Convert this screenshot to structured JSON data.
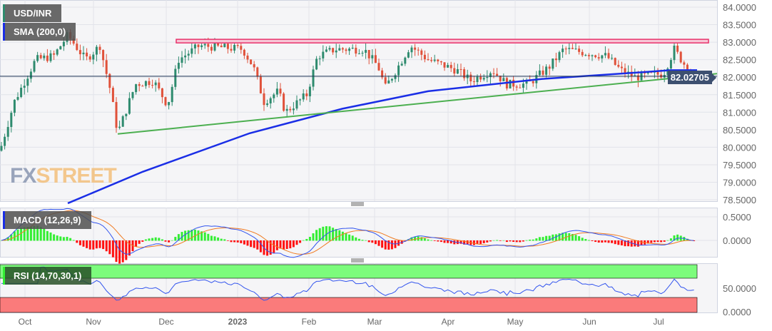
{
  "symbol_label": "USD/INR",
  "sma_label": "SMA (200,0)",
  "macd_label": "MACD (12,26,9)",
  "rsi_label": "RSI (14,70,30,1)",
  "last_price": "82.02705",
  "logo": {
    "fx": "FX",
    "street": "STREET"
  },
  "colors": {
    "up": "#2e8b6e",
    "down": "#e0513a",
    "sma": "#1a2ee6",
    "trend": "#4caf50",
    "resistance": "#e8336b",
    "macd": "#3355ee",
    "signal": "#f07a20",
    "hist_pos": "#33ee33",
    "hist_neg": "#ff1111"
  },
  "chart_data": {
    "type": "candlestick",
    "price_axis": {
      "min": 78.5,
      "max": 84.0,
      "ticks": [
        "84.0000",
        "83.5000",
        "83.0000",
        "82.5000",
        "82.0000",
        "81.5000",
        "81.0000",
        "80.5000",
        "80.0000",
        "79.5000",
        "79.0000",
        "78.5000"
      ]
    },
    "macd_axis": {
      "ticks": [
        "0.5000",
        "0.0000"
      ]
    },
    "rsi_axis": {
      "ticks": [
        "50.0000",
        "0.0000"
      ]
    },
    "x_labels": [
      "Oct",
      "Nov",
      "Dec",
      "2023",
      "Feb",
      "Mar",
      "Apr",
      "May",
      "Jun",
      "Jul"
    ],
    "close_path": [
      [
        0,
        79.9
      ],
      [
        20,
        81.3
      ],
      [
        50,
        82.5
      ],
      [
        75,
        82.6
      ],
      [
        95,
        83.2
      ],
      [
        120,
        82.5
      ],
      [
        140,
        82.9
      ],
      [
        155,
        81.6
      ],
      [
        165,
        80.4
      ],
      [
        190,
        81.8
      ],
      [
        215,
        81.9
      ],
      [
        235,
        81.2
      ],
      [
        250,
        82.5
      ],
      [
        280,
        82.9
      ],
      [
        340,
        82.8
      ],
      [
        355,
        82.3
      ],
      [
        370,
        81.3
      ],
      [
        390,
        81.6
      ],
      [
        400,
        81.0
      ],
      [
        430,
        81.5
      ],
      [
        445,
        82.6
      ],
      [
        470,
        82.8
      ],
      [
        510,
        82.8
      ],
      [
        530,
        82.3
      ],
      [
        540,
        81.7
      ],
      [
        555,
        82.2
      ],
      [
        575,
        82.9
      ],
      [
        600,
        82.5
      ],
      [
        640,
        82.2
      ],
      [
        660,
        81.9
      ],
      [
        690,
        82.2
      ],
      [
        710,
        81.8
      ],
      [
        740,
        81.8
      ],
      [
        770,
        82.3
      ],
      [
        790,
        82.8
      ],
      [
        820,
        82.7
      ],
      [
        850,
        82.6
      ],
      [
        870,
        82.2
      ],
      [
        890,
        82.0
      ],
      [
        930,
        82.1
      ],
      [
        945,
        82.8
      ],
      [
        958,
        82.4
      ],
      [
        975,
        82.03
      ]
    ],
    "sma200_path": [
      [
        95,
        78.4
      ],
      [
        200,
        79.3
      ],
      [
        350,
        80.4
      ],
      [
        480,
        81.1
      ],
      [
        600,
        81.6
      ],
      [
        760,
        81.95
      ],
      [
        870,
        82.1
      ],
      [
        940,
        82.2
      ],
      [
        977,
        82.2
      ]
    ],
    "trendline": [
      [
        165,
        80.38
      ],
      [
        1005,
        82.1
      ]
    ],
    "resistance": 83.03
  }
}
